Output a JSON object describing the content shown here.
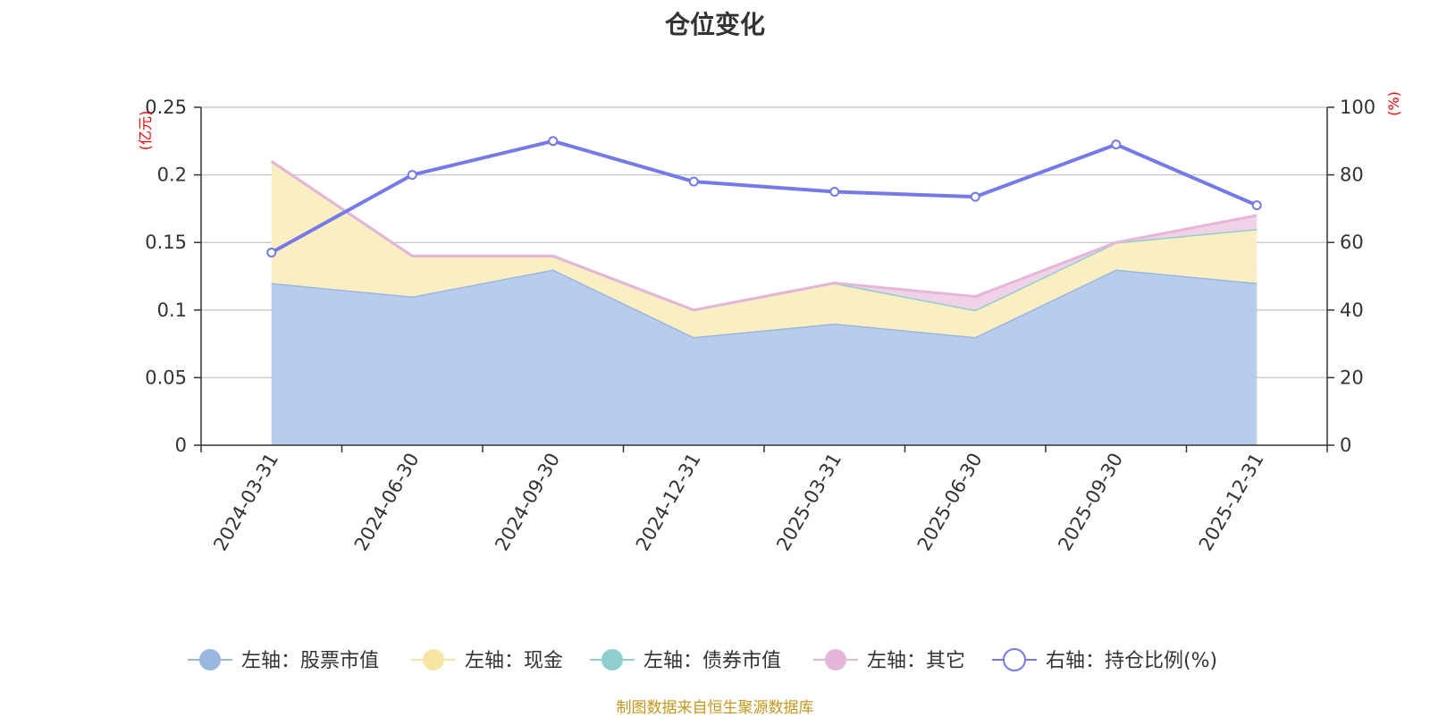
{
  "chart_data": {
    "type": "area",
    "title": "仓位变化",
    "categories": [
      "2024-03-31",
      "2024-06-30",
      "2024-09-30",
      "2024-12-31",
      "2025-03-31",
      "2025-06-30",
      "2025-09-30",
      "2025-12-31"
    ],
    "y_left": {
      "unit": "(亿元)",
      "range": [
        0,
        0.25
      ],
      "ticks": [
        "0",
        "0.05",
        "0.1",
        "0.15",
        "0.2",
        "0.25"
      ],
      "tick_values": [
        0,
        0.05,
        0.1,
        0.15,
        0.2,
        0.25
      ]
    },
    "y_right": {
      "unit": "(%)",
      "range": [
        0,
        100
      ],
      "ticks": [
        "0",
        "20",
        "40",
        "60",
        "80",
        "100"
      ],
      "tick_values": [
        0,
        20,
        40,
        60,
        80,
        100
      ]
    },
    "stacked": true,
    "series": [
      {
        "name": "左轴：股票市值",
        "axis": "left",
        "kind": "area",
        "color": "#9bb7e0",
        "fill": "#b8cceb",
        "values": [
          0.12,
          0.11,
          0.13,
          0.08,
          0.09,
          0.08,
          0.13,
          0.12
        ]
      },
      {
        "name": "左轴：现金",
        "axis": "left",
        "kind": "area",
        "color": "#f7e6a3",
        "fill": "#faefc3",
        "values": [
          0.09,
          0.03,
          0.01,
          0.02,
          0.03,
          0.02,
          0.02,
          0.04
        ]
      },
      {
        "name": "左轴：债券市值",
        "axis": "left",
        "kind": "area",
        "color": "#8fcfcf",
        "fill": "#bfe4e4",
        "values": [
          0,
          0,
          0,
          0,
          0,
          0,
          0,
          0
        ]
      },
      {
        "name": "左轴：其它",
        "axis": "left",
        "kind": "area",
        "color": "#e6b5d9",
        "fill": "#f0d2e7",
        "values": [
          0,
          0,
          0,
          0,
          0,
          0.01,
          0,
          0.01
        ]
      },
      {
        "name": "右轴：持仓比例(%)",
        "axis": "right",
        "kind": "line",
        "color": "#7579ea",
        "values": [
          57,
          80,
          90,
          78,
          75,
          73.5,
          89,
          71
        ]
      }
    ],
    "grid": true,
    "legend_position": "bottom"
  },
  "source_note": "制图数据来自恒生聚源数据库"
}
